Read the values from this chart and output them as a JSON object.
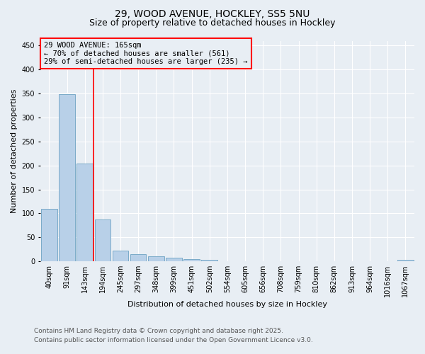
{
  "title1": "29, WOOD AVENUE, HOCKLEY, SS5 5NU",
  "title2": "Size of property relative to detached houses in Hockley",
  "xlabel": "Distribution of detached houses by size in Hockley",
  "ylabel": "Number of detached properties",
  "categories": [
    "40sqm",
    "91sqm",
    "143sqm",
    "194sqm",
    "245sqm",
    "297sqm",
    "348sqm",
    "399sqm",
    "451sqm",
    "502sqm",
    "554sqm",
    "605sqm",
    "656sqm",
    "708sqm",
    "759sqm",
    "810sqm",
    "862sqm",
    "913sqm",
    "964sqm",
    "1016sqm",
    "1067sqm"
  ],
  "values": [
    110,
    348,
    204,
    88,
    23,
    15,
    10,
    8,
    5,
    3,
    0,
    0,
    0,
    0,
    0,
    0,
    0,
    0,
    0,
    0,
    3
  ],
  "bar_color": "#b8d0e8",
  "bar_edge_color": "#7aaac8",
  "vline_x": 2.5,
  "vline_color": "red",
  "annotation_text": "29 WOOD AVENUE: 165sqm\n← 70% of detached houses are smaller (561)\n29% of semi-detached houses are larger (235) →",
  "box_color": "red",
  "ylim": [
    0,
    460
  ],
  "yticks": [
    0,
    50,
    100,
    150,
    200,
    250,
    300,
    350,
    400,
    450
  ],
  "footer_line1": "Contains HM Land Registry data © Crown copyright and database right 2025.",
  "footer_line2": "Contains public sector information licensed under the Open Government Licence v3.0.",
  "bg_color": "#e8eef4",
  "grid_color": "white",
  "title_fontsize": 10,
  "subtitle_fontsize": 9,
  "axis_label_fontsize": 8,
  "tick_fontsize": 7,
  "annotation_fontsize": 7.5,
  "footer_fontsize": 6.5
}
